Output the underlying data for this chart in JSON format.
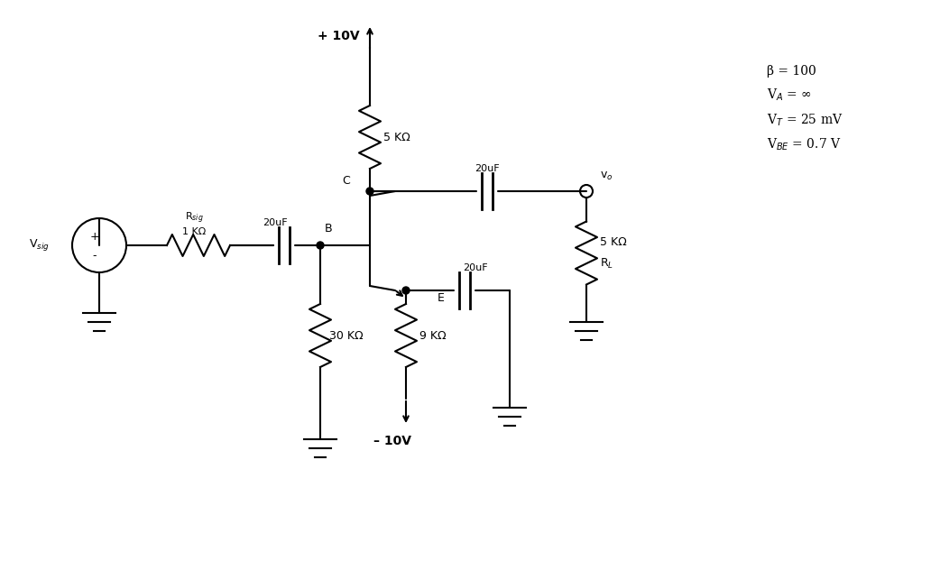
{
  "title": "",
  "background_color": "#ffffff",
  "line_color": "#000000",
  "text_color": "#000000",
  "figsize": [
    10.42,
    6.22
  ],
  "dpi": 100,
  "params_text": "β = 100\nVₐ = ∞\nVₜ = 25 mV\nVₙₑ = 0.7 V",
  "labels": {
    "Rsig": "Rₛᵢᵍ",
    "1kohm": "1 KΩ",
    "20uF_top": "20uF",
    "20uF_mid": "20uF",
    "20uF_bot": "20uF",
    "B": "B",
    "C": "C",
    "E": "E",
    "5kohm_top": "5 KΩ",
    "30kohm": "30 KΩ",
    "9kohm": "9 KΩ",
    "5kohm_RL": "5 KΩ",
    "RL": "Rₗ",
    "Vsig": "Vₛᵢᵍ",
    "vo": "vₒ",
    "plus10V": "+ 10V",
    "minus10V": "– 10V"
  }
}
